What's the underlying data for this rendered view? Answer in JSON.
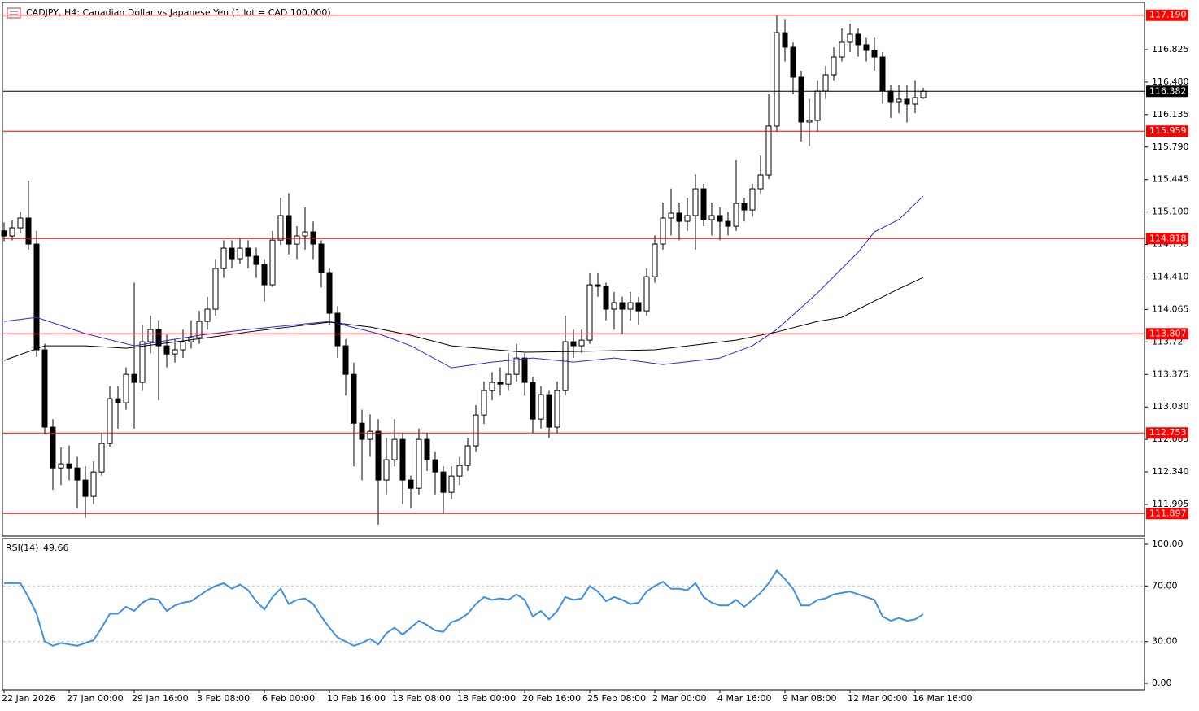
{
  "chart_data": {
    "type": "candlestick",
    "title": "CADJPY, H4:  Canadian Dollar vs Japanese Yen (1 lot = CAD 100,000)",
    "ylim": [
      111.649,
      117.352
    ],
    "yticks": [
      111.995,
      {
        "value": 112.34,
        "label": "112.340"
      },
      112.685,
      {
        "value": 113.03,
        "label": "113.030"
      },
      113.375,
      113.72,
      114.065,
      {
        "value": 114.41,
        "label": "114.410"
      },
      114.755,
      {
        "value": 115.1,
        "label": "115.100"
      },
      115.445,
      {
        "value": 115.79,
        "label": "115.790"
      },
      116.135,
      {
        "value": 116.48,
        "label": "116.480"
      },
      116.825
    ],
    "xticks": [
      {
        "value": 0,
        "label": "22 Jan 2026"
      },
      {
        "value": 8,
        "label": "27 Jan 00:00"
      },
      {
        "value": 16,
        "label": "29 Jan 16:00"
      },
      {
        "value": 24,
        "label": "3 Feb 08:00"
      },
      {
        "value": 32,
        "label": "6 Feb 00:00"
      },
      {
        "value": 40,
        "label": "10 Feb 16:00"
      },
      {
        "value": 48,
        "label": "13 Feb 08:00"
      },
      {
        "value": 56,
        "label": "18 Feb 00:00"
      },
      {
        "value": 64,
        "label": "20 Feb 16:00"
      },
      {
        "value": 72,
        "label": "25 Feb 08:00"
      },
      {
        "value": 80,
        "label": "2 Mar 00:00"
      },
      {
        "value": 88,
        "label": "4 Mar 16:00"
      },
      {
        "value": 96,
        "label": "9 Mar 08:00"
      },
      {
        "value": 104,
        "label": "12 Mar 00:00"
      },
      {
        "value": 112,
        "label": "16 Mar 16:00"
      }
    ],
    "candles": [
      [
        114.9,
        114.99,
        114.79,
        114.846
      ],
      [
        114.846,
        115.01,
        114.8,
        114.932
      ],
      [
        114.932,
        115.1,
        114.88,
        115.036
      ],
      [
        115.036,
        115.43,
        114.7,
        114.759
      ],
      [
        114.759,
        114.9,
        113.56,
        113.636
      ],
      [
        113.636,
        113.7,
        112.74,
        112.815
      ],
      [
        112.815,
        112.9,
        112.15,
        112.382
      ],
      [
        112.382,
        112.6,
        112.2,
        112.425
      ],
      [
        112.425,
        112.62,
        112.25,
        112.382
      ],
      [
        112.382,
        112.5,
        111.95,
        112.253
      ],
      [
        112.253,
        112.4,
        111.85,
        112.08
      ],
      [
        112.08,
        112.45,
        112.0,
        112.339
      ],
      [
        112.339,
        112.75,
        112.3,
        112.642
      ],
      [
        112.642,
        113.25,
        112.6,
        113.117
      ],
      [
        113.117,
        113.25,
        112.8,
        113.074
      ],
      [
        113.074,
        113.45,
        113.0,
        113.376
      ],
      [
        113.376,
        114.35,
        112.8,
        113.29
      ],
      [
        113.29,
        113.9,
        113.2,
        113.722
      ],
      [
        113.722,
        114.0,
        113.6,
        113.852
      ],
      [
        113.852,
        113.95,
        113.1,
        113.679
      ],
      [
        113.679,
        113.8,
        113.45,
        113.592
      ],
      [
        113.592,
        113.75,
        113.5,
        113.636
      ],
      [
        113.636,
        113.85,
        113.55,
        113.722
      ],
      [
        113.722,
        113.95,
        113.65,
        113.765
      ],
      [
        113.765,
        114.05,
        113.7,
        113.938
      ],
      [
        113.938,
        114.2,
        113.85,
        114.068
      ],
      [
        114.068,
        114.6,
        114.0,
        114.5
      ],
      [
        114.5,
        114.8,
        114.4,
        114.716
      ],
      [
        114.716,
        114.8,
        114.5,
        114.604
      ],
      [
        114.604,
        114.82,
        114.55,
        114.716
      ],
      [
        114.716,
        114.8,
        114.5,
        114.63
      ],
      [
        114.63,
        114.72,
        114.4,
        114.543
      ],
      [
        114.543,
        114.6,
        114.15,
        114.327
      ],
      [
        114.327,
        114.9,
        114.3,
        114.802
      ],
      [
        114.802,
        115.25,
        114.75,
        115.062
      ],
      [
        115.062,
        115.3,
        114.65,
        114.759
      ],
      [
        114.759,
        114.95,
        114.6,
        114.846
      ],
      [
        114.846,
        115.15,
        114.7,
        114.889
      ],
      [
        114.889,
        115.0,
        114.6,
        114.759
      ],
      [
        114.759,
        114.8,
        114.3,
        114.457
      ],
      [
        114.457,
        114.5,
        113.9,
        114.025
      ],
      [
        114.025,
        114.1,
        113.55,
        113.679
      ],
      [
        113.679,
        113.75,
        113.15,
        113.376
      ],
      [
        113.376,
        113.5,
        112.4,
        112.857
      ],
      [
        112.857,
        113.0,
        112.25,
        112.685
      ],
      [
        112.685,
        112.95,
        112.5,
        112.771
      ],
      [
        112.771,
        112.9,
        111.78,
        112.253
      ],
      [
        112.253,
        112.7,
        112.1,
        112.469
      ],
      [
        112.469,
        112.9,
        112.4,
        112.685
      ],
      [
        112.685,
        112.75,
        112.0,
        112.253
      ],
      [
        112.253,
        112.3,
        111.95,
        112.166
      ],
      [
        112.166,
        112.8,
        112.1,
        112.685
      ],
      [
        112.685,
        112.75,
        112.35,
        112.469
      ],
      [
        112.469,
        112.55,
        112.1,
        112.339
      ],
      [
        112.339,
        112.4,
        111.9,
        112.123
      ],
      [
        112.123,
        112.4,
        112.05,
        112.296
      ],
      [
        112.296,
        112.5,
        112.2,
        112.408
      ],
      [
        112.408,
        112.7,
        112.35,
        112.616
      ],
      [
        112.616,
        113.05,
        112.55,
        112.944
      ],
      [
        112.944,
        113.3,
        112.85,
        113.203
      ],
      [
        113.203,
        113.4,
        113.1,
        113.29
      ],
      [
        113.29,
        113.45,
        113.15,
        113.272
      ],
      [
        113.272,
        113.6,
        113.2,
        113.376
      ],
      [
        113.376,
        113.7,
        113.3,
        113.549
      ],
      [
        113.549,
        113.6,
        113.15,
        113.29
      ],
      [
        113.29,
        113.35,
        112.75,
        112.901
      ],
      [
        112.901,
        113.25,
        112.8,
        113.16
      ],
      [
        113.16,
        113.2,
        112.7,
        112.815
      ],
      [
        112.815,
        113.3,
        112.75,
        113.203
      ],
      [
        113.203,
        114.0,
        113.15,
        113.722
      ],
      [
        113.722,
        113.85,
        113.55,
        113.679
      ],
      [
        113.679,
        113.85,
        113.6,
        113.739
      ],
      [
        113.739,
        114.45,
        113.7,
        114.327
      ],
      [
        114.327,
        114.45,
        114.2,
        114.31
      ],
      [
        114.31,
        114.35,
        113.95,
        114.068
      ],
      [
        114.068,
        114.25,
        113.85,
        114.137
      ],
      [
        114.137,
        114.2,
        113.8,
        114.068
      ],
      [
        114.068,
        114.25,
        113.95,
        114.137
      ],
      [
        114.137,
        114.2,
        113.9,
        114.05
      ],
      [
        114.05,
        114.5,
        114.0,
        114.413
      ],
      [
        114.413,
        114.85,
        114.35,
        114.759
      ],
      [
        114.759,
        115.2,
        114.7,
        115.036
      ],
      [
        115.036,
        115.35,
        114.85,
        115.088
      ],
      [
        115.088,
        115.2,
        114.8,
        115.001
      ],
      [
        115.001,
        115.25,
        114.9,
        115.062
      ],
      [
        115.062,
        115.5,
        114.7,
        115.347
      ],
      [
        115.347,
        115.4,
        114.95,
        115.019
      ],
      [
        115.019,
        115.2,
        114.85,
        115.062
      ],
      [
        115.062,
        115.15,
        114.8,
        115.001
      ],
      [
        115.001,
        115.1,
        114.85,
        114.949
      ],
      [
        114.949,
        115.65,
        114.9,
        115.191
      ],
      [
        115.191,
        115.25,
        115.0,
        115.122
      ],
      [
        115.122,
        115.4,
        115.05,
        115.347
      ],
      [
        115.347,
        115.7,
        115.3,
        115.494
      ],
      [
        115.494,
        116.35,
        115.45,
        116.013
      ],
      [
        116.013,
        117.19,
        115.95,
        117.006
      ],
      [
        117.006,
        117.15,
        116.7,
        116.851
      ],
      [
        116.851,
        116.9,
        116.35,
        116.531
      ],
      [
        116.531,
        116.6,
        115.85,
        116.056
      ],
      [
        116.056,
        116.3,
        115.8,
        116.073
      ],
      [
        116.073,
        116.5,
        115.95,
        116.384
      ],
      [
        116.384,
        116.65,
        116.3,
        116.557
      ],
      [
        116.557,
        116.85,
        116.5,
        116.747
      ],
      [
        116.747,
        117.05,
        116.7,
        116.903
      ],
      [
        116.903,
        117.1,
        116.8,
        116.989
      ],
      [
        116.989,
        117.05,
        116.75,
        116.877
      ],
      [
        116.877,
        116.95,
        116.7,
        116.816
      ],
      [
        116.816,
        116.95,
        116.6,
        116.747
      ],
      [
        116.747,
        116.8,
        116.25,
        116.384
      ],
      [
        116.384,
        116.45,
        116.1,
        116.272
      ],
      [
        116.272,
        116.45,
        116.15,
        116.298
      ],
      [
        116.298,
        116.45,
        116.05,
        116.246
      ],
      [
        116.246,
        116.5,
        116.15,
        116.315
      ],
      [
        116.315,
        116.42,
        116.3,
        116.382
      ]
    ],
    "moving_averages": [
      {
        "color": "#2b2bd4",
        "x": [
          0,
          4,
          10,
          16,
          24,
          30,
          40,
          46,
          50,
          55,
          60,
          65,
          70,
          75,
          81,
          88,
          92,
          95,
          100,
          105,
          107,
          110,
          113
        ],
        "values": [
          113.938,
          113.981,
          113.808,
          113.679,
          113.791,
          113.852,
          113.938,
          113.808,
          113.679,
          113.445,
          113.506,
          113.549,
          113.506,
          113.549,
          113.48,
          113.549,
          113.679,
          113.852,
          114.24,
          114.673,
          114.889,
          115.019,
          115.269
        ]
      },
      {
        "color": "#000000",
        "x": [
          0,
          5,
          10,
          15,
          25,
          30,
          40,
          45,
          50,
          55,
          64,
          70,
          80,
          90,
          95,
          100,
          103,
          106,
          110,
          113
        ],
        "values": [
          113.523,
          113.679,
          113.679,
          113.653,
          113.765,
          113.826,
          113.93,
          113.878,
          113.791,
          113.679,
          113.61,
          113.618,
          113.636,
          113.739,
          113.826,
          113.938,
          113.981,
          114.111,
          114.284,
          114.405
        ]
      }
    ],
    "levels": [
      {
        "value": 117.19,
        "label": "117.190"
      },
      115.959,
      114.818,
      113.807,
      112.753,
      111.897
    ],
    "level_color": "#ff0000",
    "last_price": 116.382,
    "rsi": {
      "label": "RSI(14)",
      "color": "#3d8fe8",
      "ylim": [
        0,
        100
      ],
      "yticks": [
        {
          "value": 100,
          "label": "100.00"
        },
        {
          "value": 70,
          "label": "70.00"
        },
        {
          "value": 30,
          "label": "30.00"
        },
        {
          "value": 0,
          "label": "0.00"
        }
      ],
      "values": [
        72,
        72,
        72,
        62,
        50,
        30,
        27,
        29,
        28,
        27,
        29,
        31,
        40,
        50,
        50,
        55,
        52,
        58,
        61,
        60,
        52,
        56,
        58,
        59,
        63,
        67,
        70,
        72,
        68,
        71,
        67,
        59,
        53,
        62,
        68,
        57,
        60,
        61,
        57,
        48,
        40,
        33,
        30,
        27,
        29,
        32,
        28,
        36,
        40,
        35,
        40,
        45,
        42,
        38,
        37,
        44,
        46,
        50,
        57,
        62,
        60,
        61,
        60,
        64,
        60,
        48,
        52,
        46,
        52,
        62,
        60,
        61,
        70,
        66,
        59,
        62,
        60,
        57,
        58,
        66,
        70,
        73,
        68,
        68,
        67,
        72,
        62,
        58,
        56,
        56,
        60,
        55,
        60,
        65,
        72,
        81,
        75,
        68,
        56,
        56,
        60,
        61,
        64,
        65,
        66,
        64,
        62,
        60,
        48,
        45,
        47,
        45,
        46,
        49.66
      ]
    }
  }
}
